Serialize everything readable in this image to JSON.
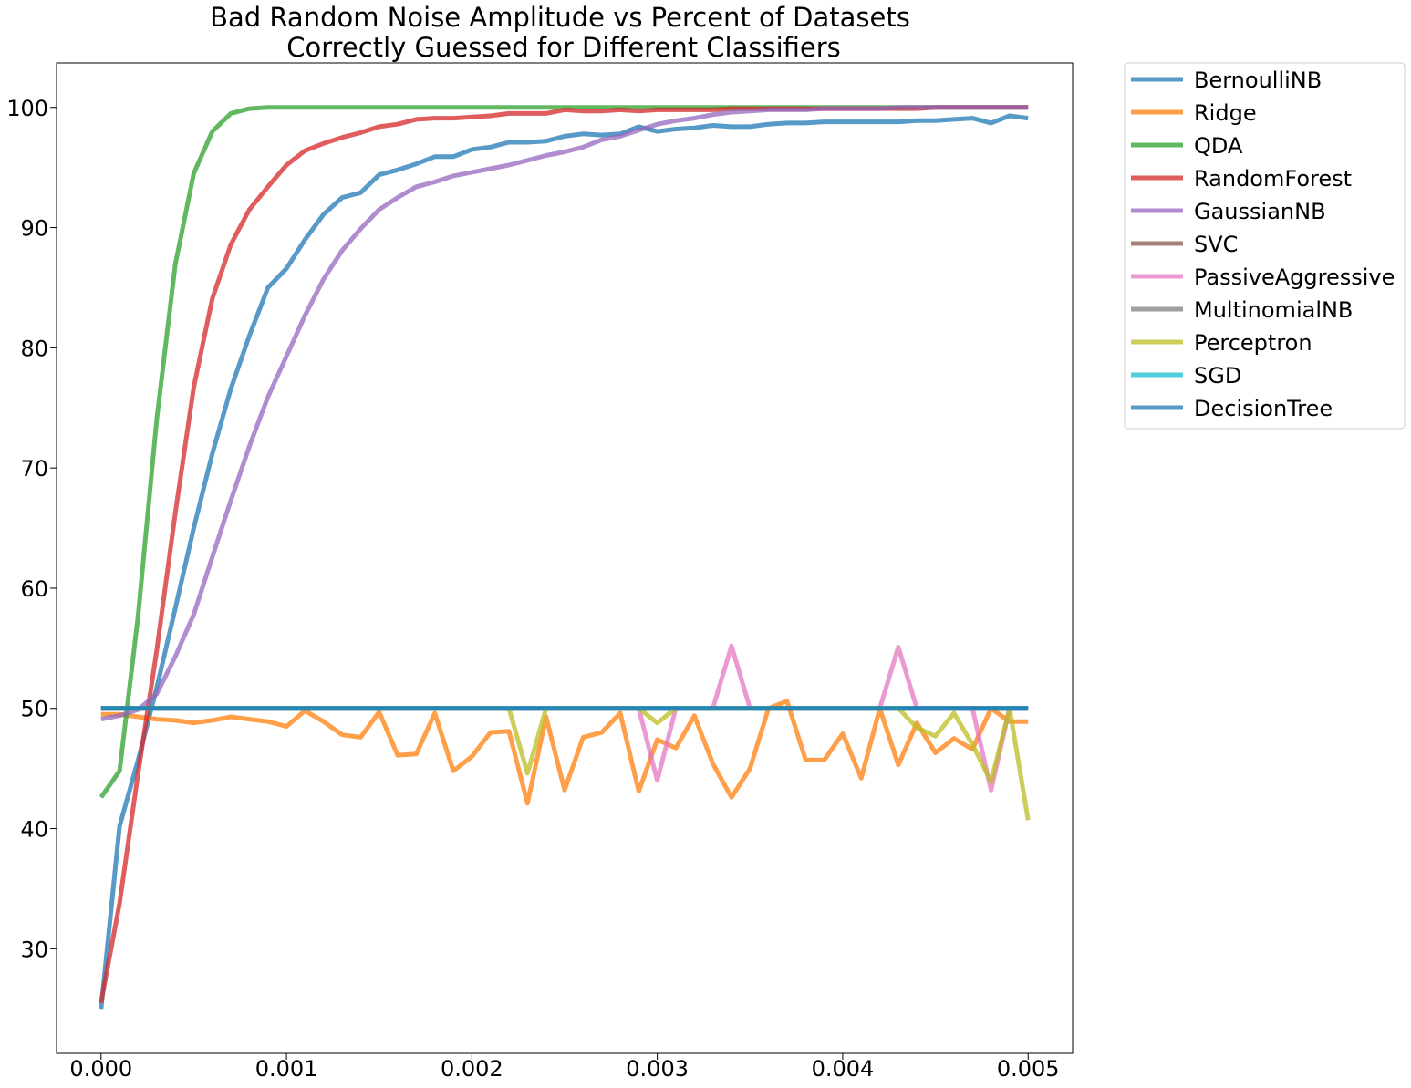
{
  "chart_data": {
    "type": "line",
    "title_lines": [
      "Bad Random Noise Amplitude vs Percent of Datasets",
      "Correctly Guessed for Different Classifiers"
    ],
    "xlabel": "",
    "ylabel": "",
    "xlim": [
      -0.00024,
      0.00524
    ],
    "ylim": [
      21.3,
      103.7
    ],
    "x_ticks": [
      "0.000",
      "0.001",
      "0.002",
      "0.003",
      "0.004",
      "0.005"
    ],
    "x_tick_values": [
      0,
      0.001,
      0.002,
      0.003,
      0.004,
      0.005
    ],
    "y_ticks": [
      "30",
      "40",
      "50",
      "60",
      "70",
      "80",
      "90",
      "100"
    ],
    "y_tick_values": [
      30,
      40,
      50,
      60,
      70,
      80,
      90,
      100
    ],
    "grid": false,
    "legend_position": "outside-right-top",
    "x": [
      0,
      0.0001,
      0.0002,
      0.0003,
      0.0004,
      0.0005,
      0.0006,
      0.0007,
      0.0008,
      0.0009,
      0.001,
      0.0011,
      0.0012,
      0.0013,
      0.0014,
      0.0015,
      0.0016,
      0.0017,
      0.0018,
      0.0019,
      0.002,
      0.0021,
      0.0022,
      0.0023,
      0.0024,
      0.0025,
      0.0026,
      0.0027,
      0.0028,
      0.0029,
      0.003,
      0.0031,
      0.0032,
      0.0033,
      0.0034,
      0.0035,
      0.0036,
      0.0037,
      0.0038,
      0.0039,
      0.004,
      0.0041,
      0.0042,
      0.0043,
      0.0044,
      0.0045,
      0.0046,
      0.0047,
      0.0048,
      0.0049,
      0.005
    ],
    "series": [
      {
        "name": "BernoulliNB",
        "color": "#1f77b4",
        "values": [
          25.0,
          40.2,
          45.7,
          51.7,
          58.3,
          65.0,
          71.2,
          76.6,
          81.0,
          85.0,
          86.6,
          89.0,
          91.1,
          92.5,
          92.9,
          94.4,
          94.8,
          95.3,
          95.9,
          95.9,
          96.5,
          96.7,
          97.1,
          97.1,
          97.2,
          97.6,
          97.8,
          97.7,
          97.8,
          98.4,
          98.0,
          98.2,
          98.3,
          98.5,
          98.4,
          98.4,
          98.6,
          98.7,
          98.7,
          98.8,
          98.8,
          98.8,
          98.8,
          98.8,
          98.9,
          98.9,
          99.0,
          99.1,
          98.7,
          99.3,
          99.1
        ]
      },
      {
        "name": "Ridge",
        "color": "#ff7f0e",
        "values": [
          49.5,
          49.5,
          49.3,
          49.1,
          49.0,
          48.8,
          49.0,
          49.3,
          49.1,
          48.9,
          48.5,
          49.8,
          48.9,
          47.8,
          47.6,
          49.7,
          46.1,
          46.2,
          49.6,
          44.8,
          46.0,
          48.0,
          48.1,
          42.1,
          49.3,
          43.2,
          47.6,
          48.0,
          49.6,
          43.1,
          47.4,
          46.7,
          49.4,
          45.4,
          42.6,
          45.0,
          50.0,
          50.6,
          45.7,
          45.7,
          47.9,
          44.2,
          50.0,
          45.3,
          48.8,
          46.3,
          47.5,
          46.6,
          50.0,
          48.9,
          48.9
        ]
      },
      {
        "name": "QDA",
        "color": "#2ca02c",
        "values": [
          42.6,
          44.8,
          57.7,
          74.0,
          86.9,
          94.5,
          98.0,
          99.5,
          99.9,
          100,
          100,
          100,
          100,
          100,
          100,
          100,
          100,
          100,
          100,
          100,
          100,
          100,
          100,
          100,
          100,
          100,
          100,
          100,
          100,
          100,
          100,
          100,
          100,
          100,
          100,
          100,
          100,
          100,
          100,
          100,
          100,
          100,
          100,
          100,
          100,
          100,
          100,
          100,
          100,
          100,
          100
        ]
      },
      {
        "name": "RandomForest",
        "color": "#d62728",
        "values": [
          25.5,
          33.8,
          44.6,
          54.8,
          66.2,
          76.7,
          84.1,
          88.6,
          91.5,
          93.4,
          95.2,
          96.4,
          97.0,
          97.5,
          97.9,
          98.4,
          98.6,
          99.0,
          99.1,
          99.1,
          99.2,
          99.3,
          99.5,
          99.5,
          99.5,
          99.8,
          99.7,
          99.7,
          99.8,
          99.7,
          99.8,
          99.8,
          99.8,
          99.8,
          99.9,
          99.9,
          99.9,
          99.9,
          99.9,
          99.9,
          99.9,
          99.9,
          99.9,
          99.9,
          99.9,
          100,
          100,
          100,
          100,
          100,
          100
        ]
      },
      {
        "name": "GaussianNB",
        "color": "#9467bd",
        "values": [
          49.1,
          49.4,
          49.9,
          51.2,
          54.3,
          57.8,
          62.6,
          67.3,
          71.8,
          75.9,
          79.3,
          82.7,
          85.7,
          88.1,
          89.9,
          91.5,
          92.5,
          93.4,
          93.8,
          94.3,
          94.6,
          94.9,
          95.2,
          95.6,
          96.0,
          96.3,
          96.7,
          97.3,
          97.6,
          98.1,
          98.6,
          98.9,
          99.1,
          99.4,
          99.6,
          99.7,
          99.8,
          99.8,
          99.8,
          99.9,
          99.9,
          99.9,
          99.9,
          100,
          100,
          100,
          100,
          100,
          100,
          100,
          100
        ]
      },
      {
        "name": "SVC",
        "color": "#8c564b",
        "values": [
          50,
          50,
          50,
          50,
          50,
          50,
          50,
          50,
          50,
          50,
          50,
          50,
          50,
          50,
          50,
          50,
          50,
          50,
          50,
          50,
          50,
          50,
          50,
          50,
          50,
          50,
          50,
          50,
          50,
          50,
          50,
          50,
          50,
          50,
          50,
          50,
          50,
          50,
          50,
          50,
          50,
          50,
          50,
          50,
          50,
          50,
          50,
          50,
          50,
          50,
          50
        ]
      },
      {
        "name": "PassiveAggressive",
        "color": "#e377c2",
        "values": [
          50,
          50,
          50,
          50,
          50,
          50,
          50,
          50,
          50,
          50,
          50,
          50,
          50,
          50,
          50,
          50,
          50,
          50,
          50,
          50,
          50,
          50,
          50,
          50,
          50,
          50,
          50,
          50,
          50,
          50,
          44.0,
          50,
          50,
          50,
          55.2,
          50,
          50,
          50,
          50,
          50,
          50,
          50,
          50,
          55.1,
          50,
          50,
          50,
          50,
          43.2,
          50,
          50
        ]
      },
      {
        "name": "MultinomialNB",
        "color": "#7f7f7f",
        "values": [
          50,
          50,
          50,
          50,
          50,
          50,
          50,
          50,
          50,
          50,
          50,
          50,
          50,
          50,
          50,
          50,
          50,
          50,
          50,
          50,
          50,
          50,
          50,
          50,
          50,
          50,
          50,
          50,
          50,
          50,
          50,
          50,
          50,
          50,
          50,
          50,
          50,
          50,
          50,
          50,
          50,
          50,
          50,
          50,
          50,
          50,
          50,
          50,
          50,
          50,
          50
        ]
      },
      {
        "name": "Perceptron",
        "color": "#bcbd22",
        "values": [
          50,
          50,
          50,
          50,
          50,
          50,
          50,
          50,
          50,
          50,
          50,
          50,
          50,
          50,
          50,
          50,
          50,
          50,
          50,
          50,
          50,
          50,
          50,
          44.6,
          50,
          50,
          50,
          50,
          50,
          50,
          48.8,
          50,
          50,
          50,
          50,
          50,
          50,
          50,
          50,
          50,
          50,
          50,
          50,
          50,
          48.4,
          47.7,
          49.6,
          47.0,
          43.9,
          50,
          40.7
        ]
      },
      {
        "name": "SGD",
        "color": "#17becf",
        "values": [
          50,
          50,
          50,
          50,
          50,
          50,
          50,
          50,
          50,
          50,
          50,
          50,
          50,
          50,
          50,
          50,
          50,
          50,
          50,
          50,
          50,
          50,
          50,
          50,
          50,
          50,
          50,
          50,
          50,
          50,
          50,
          50,
          50,
          50,
          50,
          50,
          50,
          50,
          50,
          50,
          50,
          50,
          50,
          50,
          50,
          50,
          50,
          50,
          50,
          50,
          50
        ]
      },
      {
        "name": "DecisionTree",
        "color": "#1f77b4",
        "values": [
          50,
          50,
          50,
          50,
          50,
          50,
          50,
          50,
          50,
          50,
          50,
          50,
          50,
          50,
          50,
          50,
          50,
          50,
          50,
          50,
          50,
          50,
          50,
          50,
          50,
          50,
          50,
          50,
          50,
          50,
          50,
          50,
          50,
          50,
          50,
          50,
          50,
          50,
          50,
          50,
          50,
          50,
          50,
          50,
          50,
          50,
          50,
          50,
          50,
          50,
          50
        ]
      }
    ]
  }
}
